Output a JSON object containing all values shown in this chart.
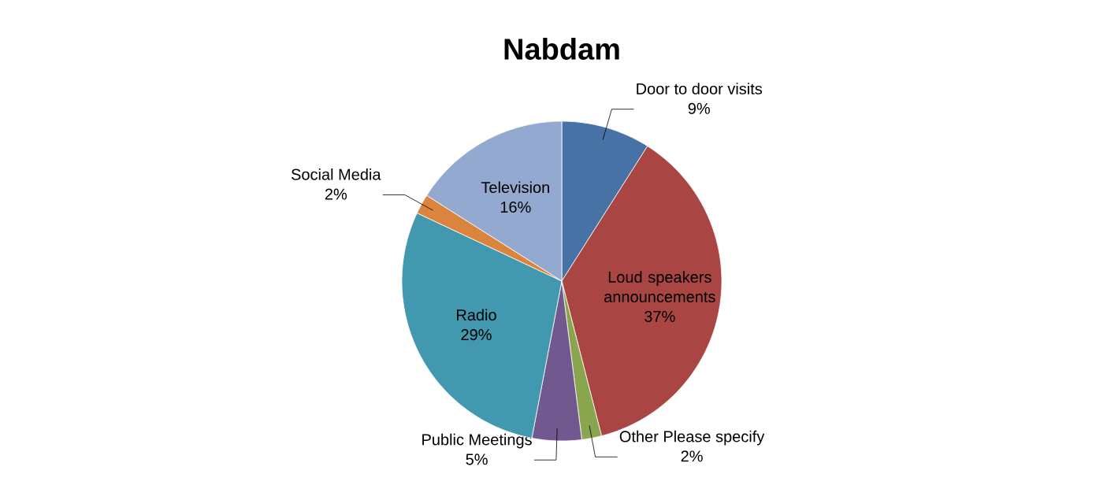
{
  "chart_data": {
    "type": "pie",
    "title": "Nabdam",
    "categories": [
      "Door to door visits",
      "Loud speakers announcements",
      "Other  Please specify",
      "Public Meetings",
      "Radio",
      "Social Media",
      "Television"
    ],
    "values": [
      9,
      37,
      2,
      5,
      29,
      2,
      16
    ],
    "value_labels": [
      "9%",
      "37%",
      "2%",
      "5%",
      "29%",
      "2%",
      "16%"
    ],
    "colors": [
      "#4672a6",
      "#a94644",
      "#89a54e",
      "#71588f",
      "#4198af",
      "#db843d",
      "#93a9cf"
    ]
  }
}
